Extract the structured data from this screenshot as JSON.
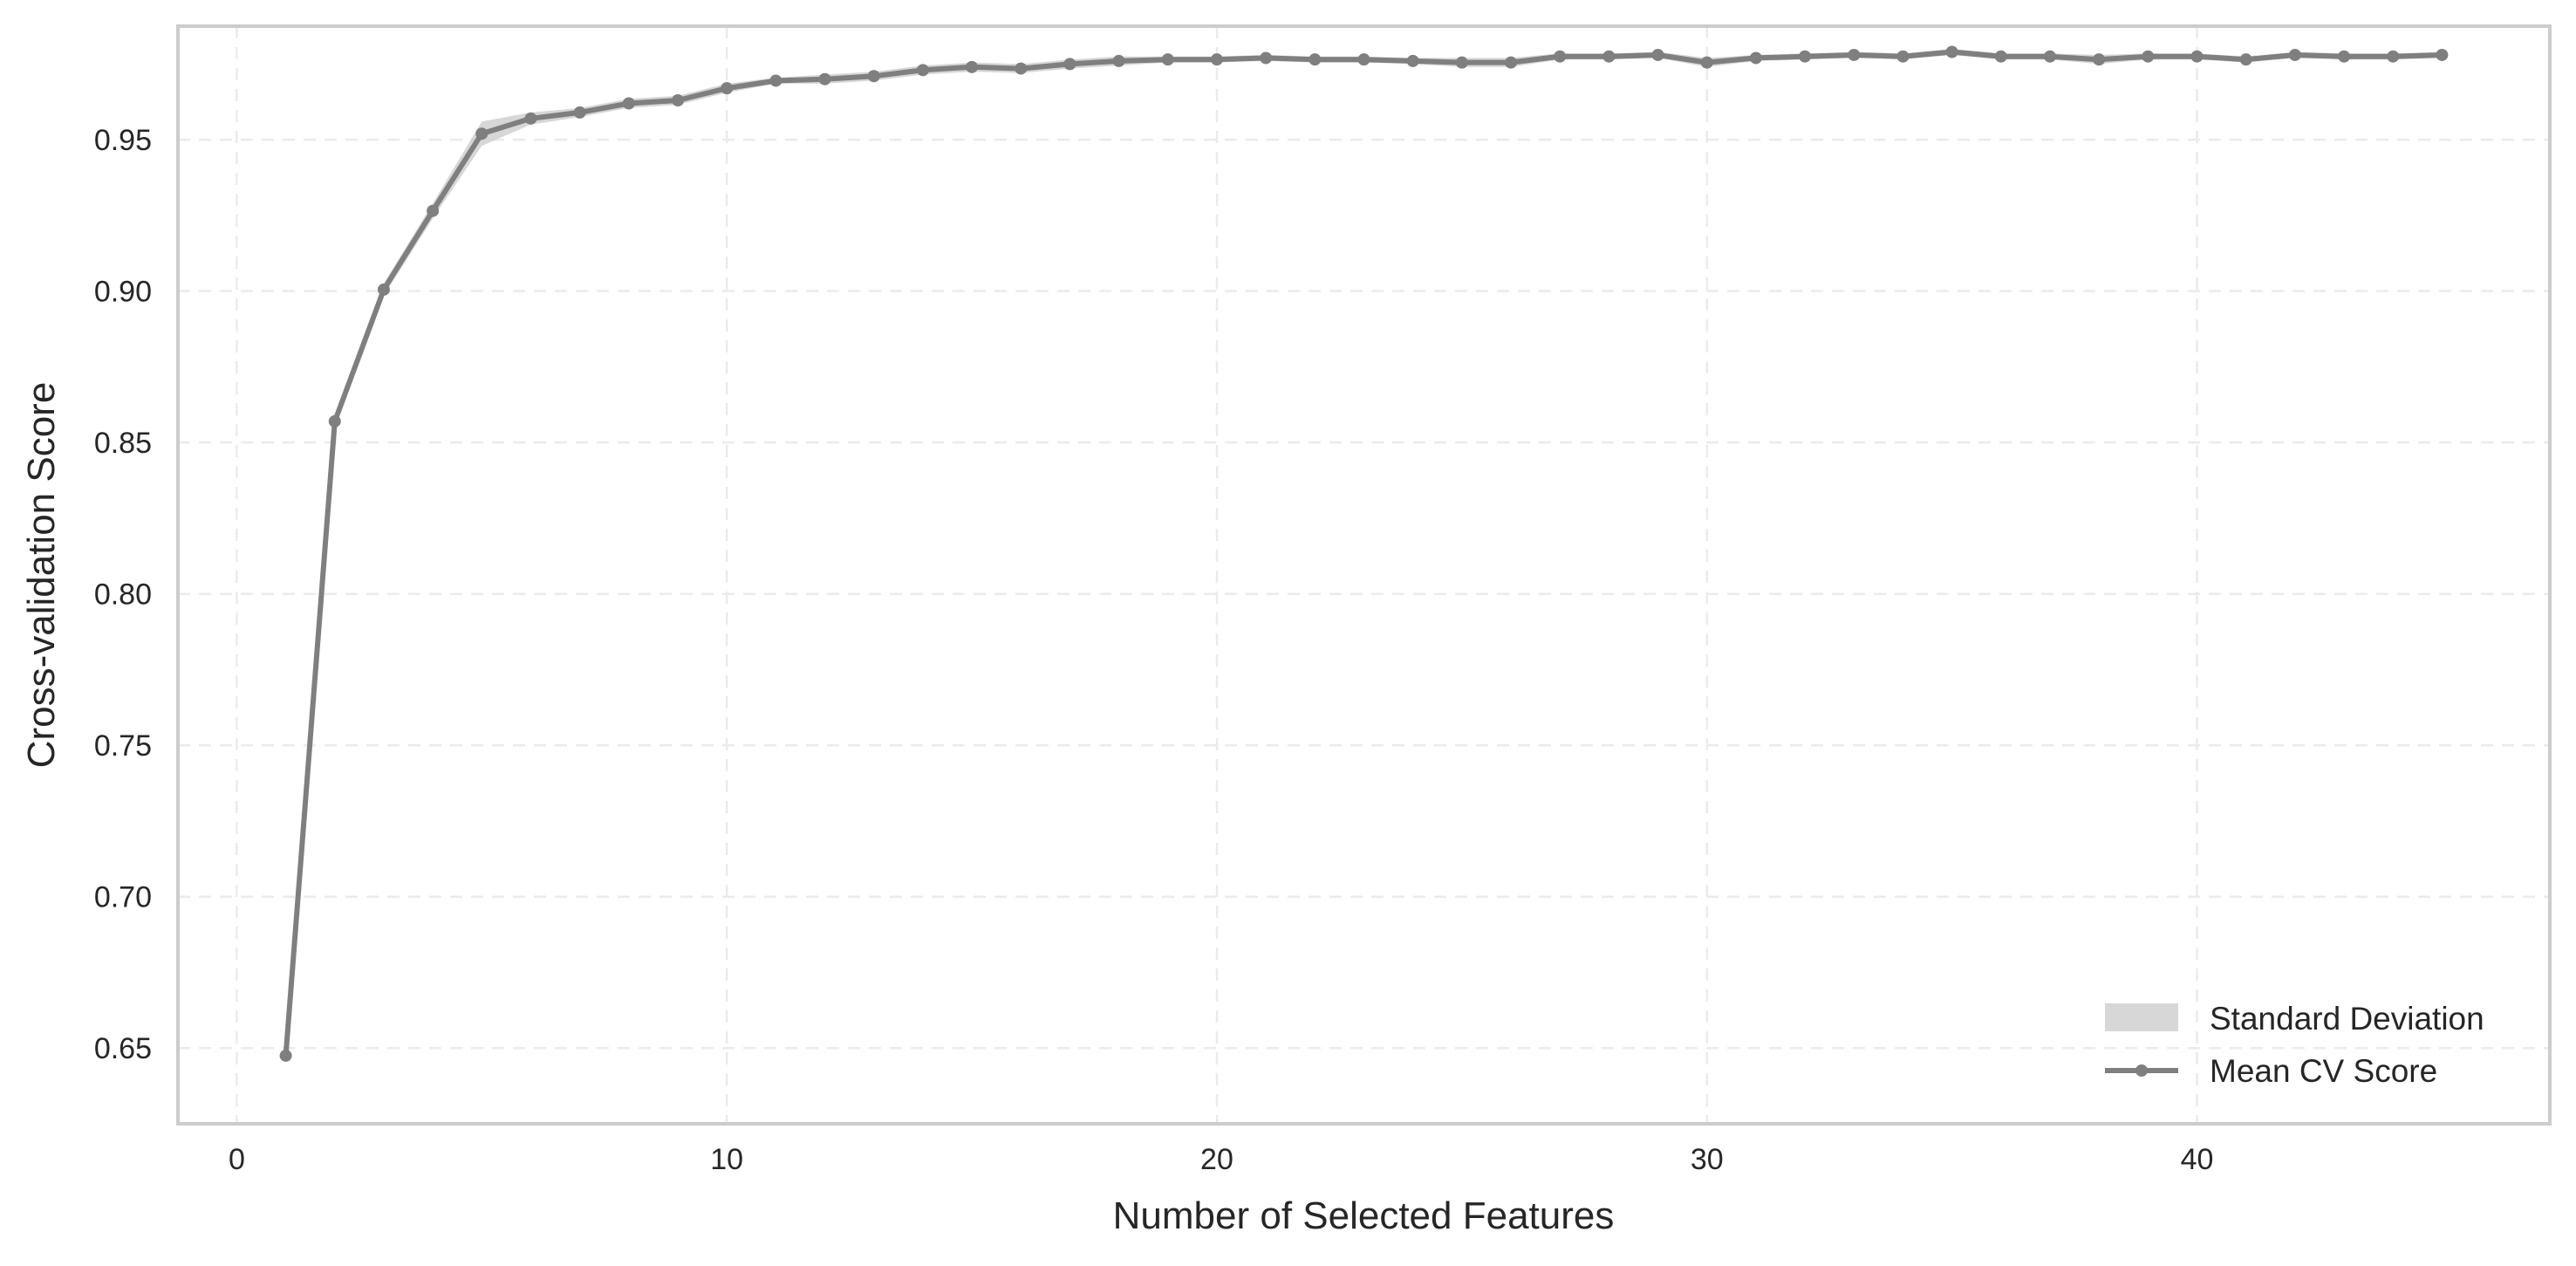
{
  "chart_data": {
    "type": "line",
    "xlabel": "Number of Selected Features",
    "ylabel": "Cross-validation Score",
    "xlim": [
      -1.2,
      47.2
    ],
    "ylim": [
      0.625,
      0.9875
    ],
    "xticks": [
      0,
      10,
      20,
      30,
      40
    ],
    "xtick_labels": [
      "0",
      "10",
      "20",
      "30",
      "40"
    ],
    "yticks": [
      0.65,
      0.7,
      0.75,
      0.8,
      0.85,
      0.9,
      0.95
    ],
    "ytick_labels": [
      "0.65",
      "0.70",
      "0.75",
      "0.80",
      "0.85",
      "0.90",
      "0.95"
    ],
    "grid": true,
    "legend_position": "bottom-right",
    "legend": {
      "std_label": "Standard Deviation",
      "mean_label": "Mean CV Score"
    },
    "colors": {
      "line": "#7f7f7f",
      "band": "#bdbdbd",
      "grid": "#ebebeb",
      "frame": "#cccccc"
    },
    "x": [
      1,
      2,
      3,
      4,
      5,
      6,
      7,
      8,
      9,
      10,
      11,
      12,
      13,
      14,
      15,
      16,
      17,
      18,
      19,
      20,
      21,
      22,
      23,
      24,
      25,
      26,
      27,
      28,
      29,
      30,
      31,
      32,
      33,
      34,
      35,
      36,
      37,
      38,
      39,
      40,
      41,
      42,
      43,
      44,
      45
    ],
    "series": [
      {
        "name": "Mean CV Score",
        "values": [
          0.6475,
          0.857,
          0.9005,
          0.9265,
          0.952,
          0.957,
          0.959,
          0.962,
          0.963,
          0.967,
          0.9695,
          0.97,
          0.971,
          0.973,
          0.974,
          0.9735,
          0.975,
          0.976,
          0.9765,
          0.9765,
          0.977,
          0.9765,
          0.9765,
          0.976,
          0.9755,
          0.9755,
          0.9775,
          0.9775,
          0.978,
          0.9755,
          0.977,
          0.9775,
          0.978,
          0.9775,
          0.979,
          0.9775,
          0.9775,
          0.9765,
          0.9775,
          0.9775,
          0.9765,
          0.978,
          0.9775,
          0.9775,
          0.978
        ]
      }
    ],
    "std": [
      0.003,
      0.002,
      0.002,
      0.0025,
      0.004,
      0.002,
      0.0015,
      0.0015,
      0.0015,
      0.0015,
      0.001,
      0.0015,
      0.0015,
      0.0015,
      0.0015,
      0.0015,
      0.0015,
      0.0015,
      0.001,
      0.001,
      0.001,
      0.001,
      0.001,
      0.001,
      0.0015,
      0.0015,
      0.001,
      0.001,
      0.001,
      0.0015,
      0.001,
      0.001,
      0.001,
      0.001,
      0.001,
      0.001,
      0.001,
      0.0015,
      0.001,
      0.001,
      0.001,
      0.001,
      0.001,
      0.001,
      0.001
    ]
  }
}
